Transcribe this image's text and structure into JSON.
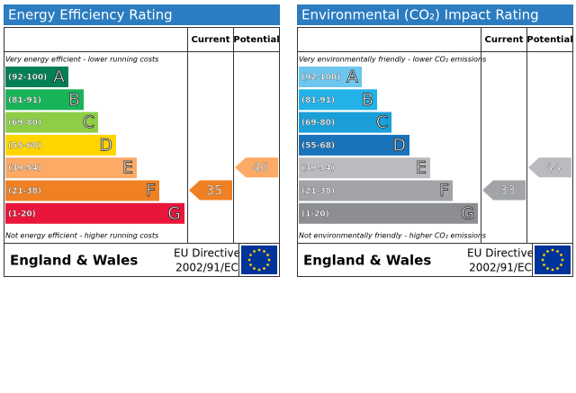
{
  "panels": [
    {
      "title": "Energy Efficiency Rating",
      "headers": [
        "Current",
        "Potential"
      ],
      "top_note": "Very energy efficient - lower running costs",
      "bottom_note": "Not energy efficient - higher running costs",
      "bands": [
        {
          "range": "(92-100)",
          "letter": "A",
          "color": "#008054"
        },
        {
          "range": "(81-91)",
          "letter": "B",
          "color": "#19b459"
        },
        {
          "range": "(69-80)",
          "letter": "C",
          "color": "#8dce46"
        },
        {
          "range": "(55-68)",
          "letter": "D",
          "color": "#ffd500"
        },
        {
          "range": "(39-54)",
          "letter": "E",
          "color": "#fcaa65"
        },
        {
          "range": "(21-38)",
          "letter": "F",
          "color": "#ef8023"
        },
        {
          "range": "(1-20)",
          "letter": "G",
          "color": "#e9153b"
        }
      ],
      "current": 35,
      "potential": 46,
      "footer": "England & Wales",
      "directive": [
        "EU Directive",
        "2002/91/EC"
      ]
    },
    {
      "title": "Environmental (CO₂) Impact Rating",
      "headers": [
        "Current",
        "Potential"
      ],
      "top_note": "Very environmentally friendly - lower CO₂ emissions",
      "bottom_note": "Not environmentally friendly - higher CO₂ emissions",
      "bands": [
        {
          "range": "(92-100)",
          "letter": "A",
          "color": "#6dc6ee"
        },
        {
          "range": "(81-91)",
          "letter": "B",
          "color": "#22b2e8"
        },
        {
          "range": "(69-80)",
          "letter": "C",
          "color": "#1b9fd9"
        },
        {
          "range": "(55-68)",
          "letter": "D",
          "color": "#1a73b9"
        },
        {
          "range": "(39-54)",
          "letter": "E",
          "color": "#b9bbbe"
        },
        {
          "range": "(21-38)",
          "letter": "F",
          "color": "#a2a4a7"
        },
        {
          "range": "(1-20)",
          "letter": "G",
          "color": "#8c8e91"
        }
      ],
      "current": 33,
      "potential": 44,
      "footer": "England & Wales",
      "directive": [
        "EU Directive",
        "2002/91/EC"
      ]
    }
  ]
}
